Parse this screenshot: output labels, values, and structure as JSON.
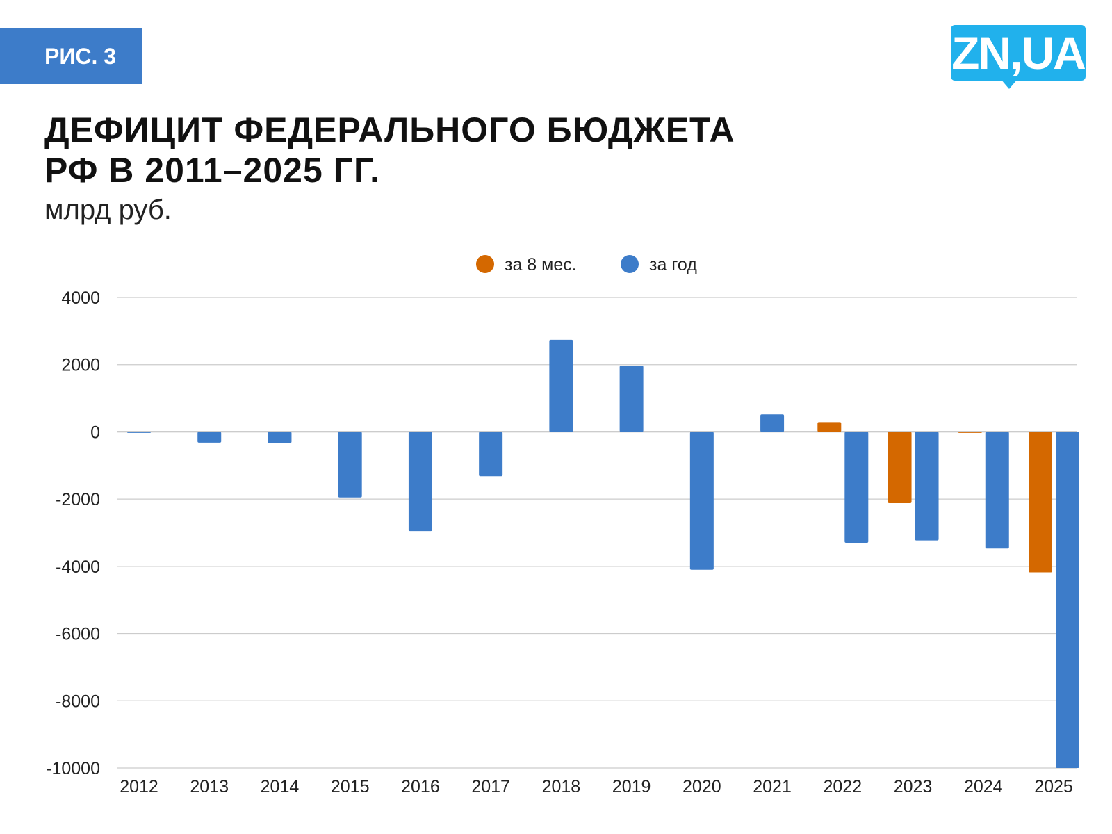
{
  "badge": "РИС. 3",
  "logo": "ZN,UA",
  "chart_data": {
    "type": "bar",
    "title": "ДЕФИЦИТ ФЕДЕРАЛЬНОГО БЮДЖЕТА РФ В 2011–2025 ГГ.",
    "title_lines": [
      "ДЕФИЦИТ ФЕДЕРАЛЬНОГО БЮДЖЕТА",
      "РФ В 2011–2025 ГГ."
    ],
    "subtitle": "млрд руб.",
    "legend_position": "top",
    "grid": true,
    "ylim": [
      -10000,
      4000
    ],
    "yticks": [
      4000,
      2000,
      0,
      -2000,
      -4000,
      -6000,
      -8000,
      -10000
    ],
    "categories": [
      "2012",
      "2013",
      "2014",
      "2015",
      "2016",
      "2017",
      "2018",
      "2019",
      "2020",
      "2021",
      "2022",
      "2023",
      "2024",
      "2025"
    ],
    "series": [
      {
        "name": "за 8 мес.",
        "color": "#d46800",
        "values": [
          null,
          null,
          null,
          null,
          null,
          null,
          null,
          null,
          null,
          null,
          290,
          -2120,
          -30,
          -4180
        ]
      },
      {
        "name": "за год",
        "color": "#3d7cc9",
        "values": [
          -30,
          -320,
          -330,
          -1950,
          -2950,
          -1320,
          2740,
          1970,
          -4100,
          520,
          -3300,
          -3230,
          -3470,
          -10000
        ]
      }
    ]
  }
}
